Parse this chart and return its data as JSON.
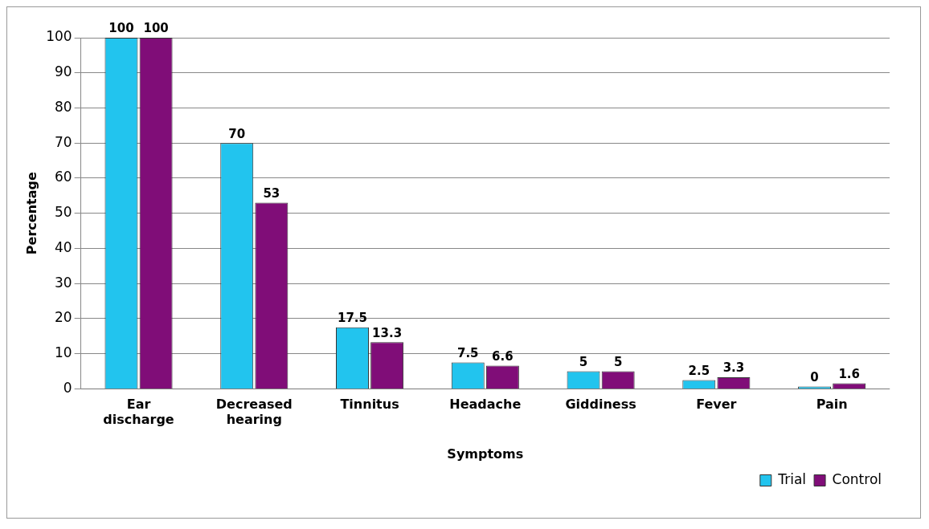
{
  "chart_data": {
    "type": "bar",
    "xlabel": "Symptoms",
    "ylabel": "Percentage",
    "categories": [
      "Ear discharge",
      "Decreased hearing",
      "Tinnitus",
      "Headache",
      "Giddiness",
      "Fever",
      "Pain"
    ],
    "series": [
      {
        "name": "Trial",
        "color": "#22c4ee",
        "values": [
          100,
          70,
          17.5,
          7.5,
          5,
          2.5,
          0
        ]
      },
      {
        "name": "Control",
        "color": "#800d78",
        "values": [
          100,
          53,
          13.3,
          6.6,
          5,
          3.3,
          1.6
        ]
      }
    ],
    "ylim": [
      0,
      100
    ],
    "yticks": [
      0,
      10,
      20,
      30,
      40,
      50,
      60,
      70,
      80,
      90,
      100
    ],
    "grid": "y",
    "legend": "bottom right",
    "data_labels": true
  }
}
